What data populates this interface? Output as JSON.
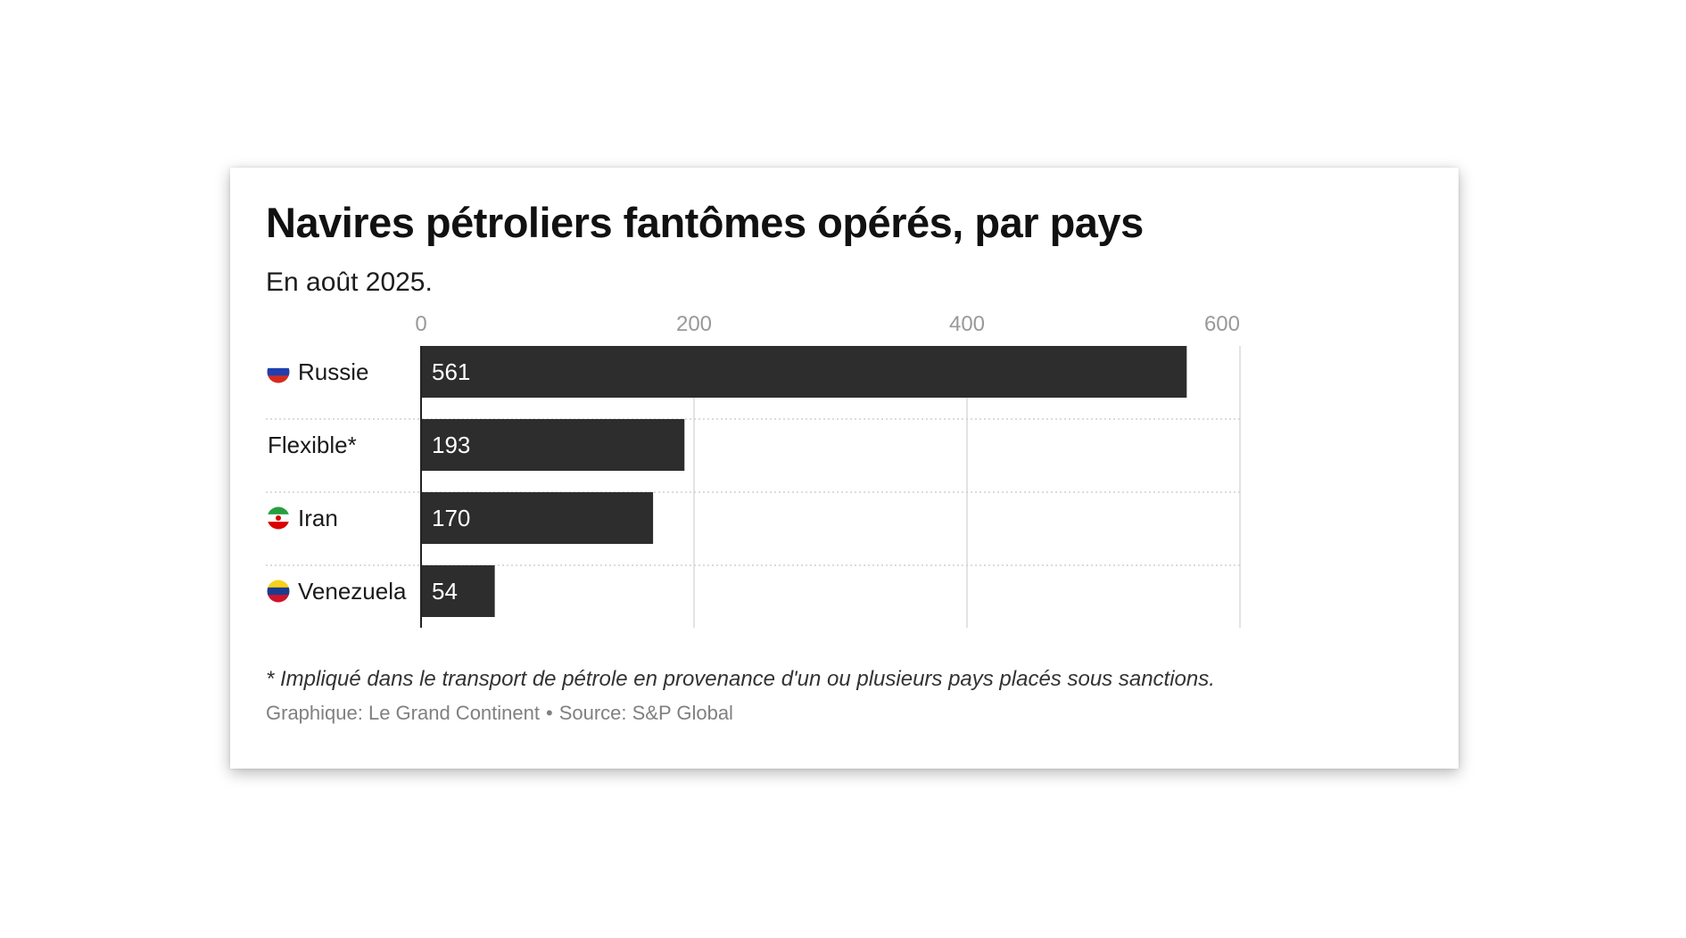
{
  "chart_data": {
    "type": "bar",
    "orientation": "horizontal",
    "title": "Navires pétroliers fantômes opérés, par pays",
    "subtitle": "En août 2025.",
    "categories": [
      "Russie",
      "Flexible*",
      "Iran",
      "Venezuela"
    ],
    "category_icons": [
      "russia-flag-icon",
      null,
      "iran-flag-icon",
      "venezuela-flag-icon"
    ],
    "values": [
      561,
      193,
      170,
      54
    ],
    "data_labels": [
      "561",
      "193",
      "170",
      "54"
    ],
    "xlim": [
      0,
      600
    ],
    "x_ticks": [
      0,
      200,
      400,
      600
    ],
    "x_tick_labels": [
      "0",
      "200",
      "400",
      "600"
    ],
    "x_axis_position": "top",
    "grid": true,
    "xlabel": "",
    "ylabel": "",
    "legend": "none",
    "note": "* Impliqué dans le transport de pétrole en provenance d'un ou plusieurs pays placés sous sanctions.",
    "credit": "Graphique: Le Grand Continent",
    "source": "Source: S&P Global"
  },
  "colors": {
    "bar": "#2d2d2d",
    "bar_label": "#ffffff",
    "gridline": "#e3e3e3",
    "row_separator": "#cfcfcf",
    "tick_label": "#999999",
    "russia_flag": [
      "#ffffff",
      "#1f3fae",
      "#d52b1e"
    ],
    "iran_flag": [
      "#239f40",
      "#ffffff",
      "#da0000"
    ],
    "venezuela_flag": [
      "#f7d117",
      "#1a3c8f",
      "#cf142b"
    ]
  },
  "separator": "•"
}
